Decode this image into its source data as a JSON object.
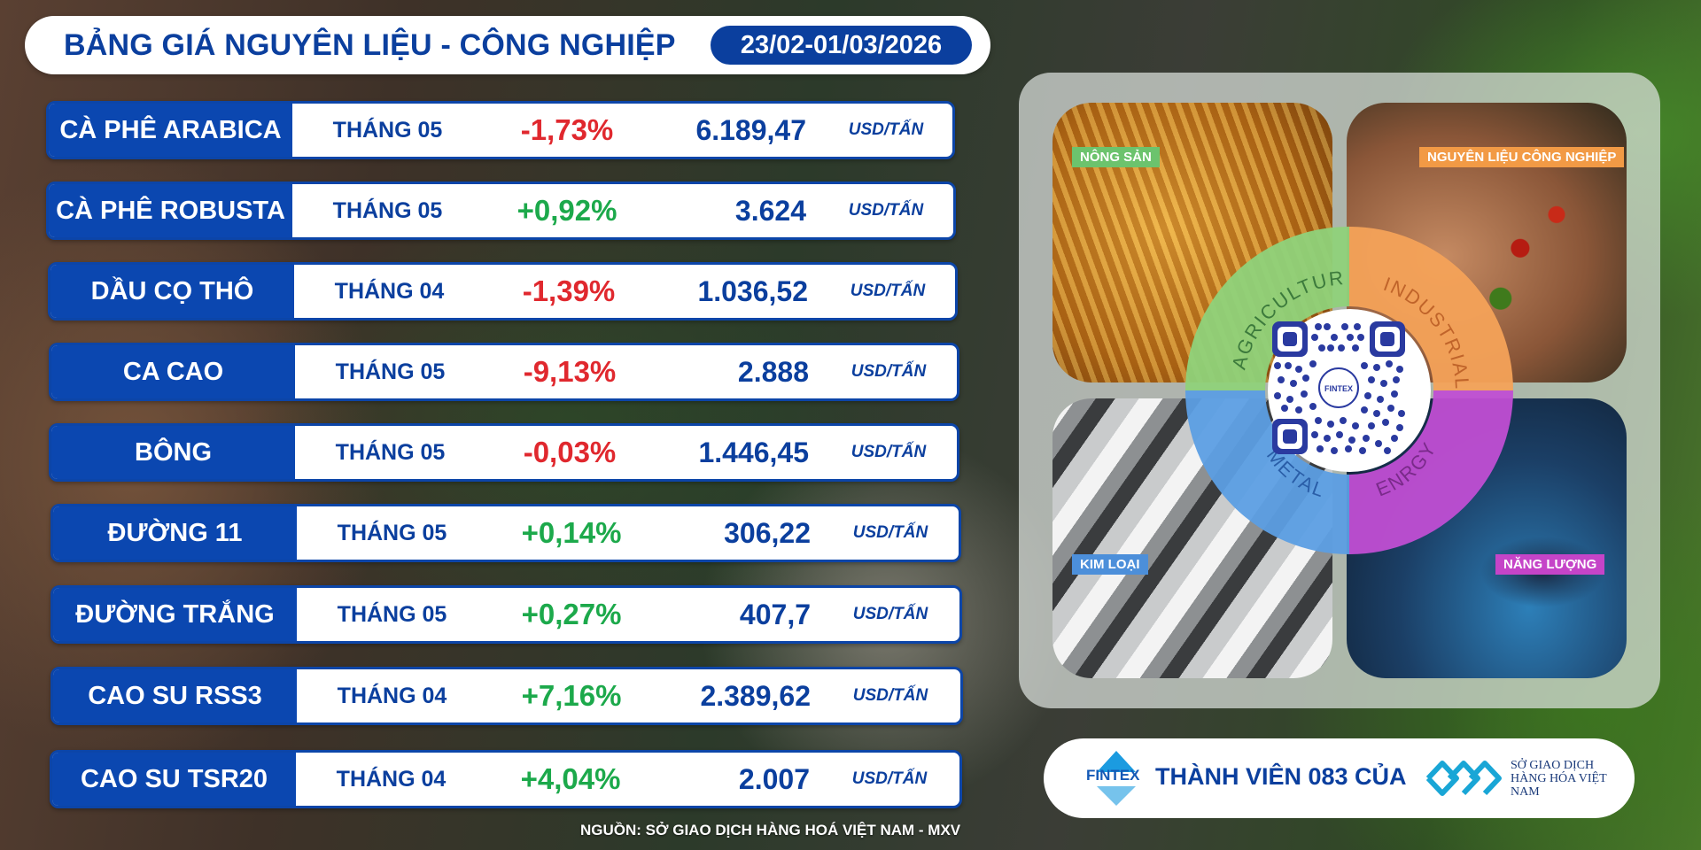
{
  "header": {
    "title": "BẢNG GIÁ NGUYÊN LIỆU - CÔNG NGHIỆP",
    "date_range": "23/02-01/03/2026"
  },
  "rows": [
    {
      "name": "CÀ PHÊ ARABICA",
      "month": "THÁNG 05",
      "change": "-1,73%",
      "price": "6.189,47",
      "unit": "USD/TẤN",
      "direction": "down"
    },
    {
      "name": "CÀ PHÊ ROBUSTA",
      "month": "THÁNG 05",
      "change": "+0,92%",
      "price": "3.624",
      "unit": "USD/TẤN",
      "direction": "up"
    },
    {
      "name": "DẦU CỌ THÔ",
      "month": "THÁNG 04",
      "change": "-1,39%",
      "price": "1.036,52",
      "unit": "USD/TẤN",
      "direction": "down"
    },
    {
      "name": "CA CAO",
      "month": "THÁNG 05",
      "change": "-9,13%",
      "price": "2.888",
      "unit": "USD/TẤN",
      "direction": "down"
    },
    {
      "name": "BÔNG",
      "month": "THÁNG 05",
      "change": "-0,03%",
      "price": "1.446,45",
      "unit": "USD/TẤN",
      "direction": "down"
    },
    {
      "name": "ĐƯỜNG 11",
      "month": "THÁNG 05",
      "change": "+0,14%",
      "price": "306,22",
      "unit": "USD/TẤN",
      "direction": "up"
    },
    {
      "name": "ĐƯỜNG TRẮNG",
      "month": "THÁNG 05",
      "change": "+0,27%",
      "price": "407,7",
      "unit": "USD/TẤN",
      "direction": "up"
    },
    {
      "name": "CAO SU RSS3",
      "month": "THÁNG 04",
      "change": "+7,16%",
      "price": "2.389,62",
      "unit": "USD/TẤN",
      "direction": "up"
    },
    {
      "name": "CAO SU TSR20",
      "month": "THÁNG 04",
      "change": "+4,04%",
      "price": "2.007",
      "unit": "USD/TẤN",
      "direction": "up"
    }
  ],
  "source": "NGUỒN: SỞ GIAO DỊCH HÀNG HOÁ VIỆT NAM - MXV",
  "categories": {
    "tile_labels": [
      "NÔNG SẢN",
      "NGUYÊN LIỆU CÔNG NGHIỆP",
      "KIM LOẠI",
      "NĂNG LƯỢNG"
    ],
    "ring_labels": [
      "AGRICULTURE",
      "INDUSTRIAL",
      "METAL",
      "ENRGY"
    ],
    "colors": {
      "agriculture": "#6cc36d",
      "industrial": "#f29a45",
      "metal": "#4c8fda",
      "energy": "#c544c8"
    },
    "qr_label": "FINTEX"
  },
  "member": {
    "fintex_brand": "FINTEX",
    "text": "THÀNH VIÊN 083 CỦA",
    "exchange_name": "SỞ GIAO DỊCH HÀNG HÓA VIỆT NAM"
  },
  "colors": {
    "brand_blue": "#0b3f9e",
    "negative": "#e0282e",
    "positive": "#1ca94b"
  }
}
